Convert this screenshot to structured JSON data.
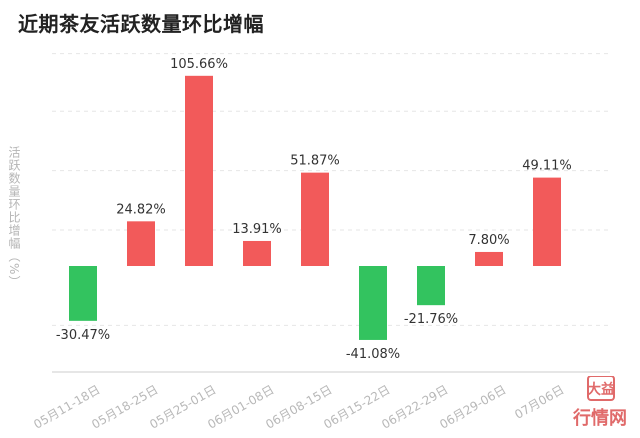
{
  "title": "近期茶友活跃数量环比增幅",
  "chart_data": {
    "type": "bar",
    "title": "近期茶友活跃数量环比增幅",
    "ylabel": "活跃数量环比增幅（%）",
    "xlabel": "",
    "categories": [
      "05月11-18日",
      "05月18-25日",
      "05月25-01日",
      "06月01-08日",
      "06月08-15日",
      "06月15-22日",
      "06月22-29日",
      "06月29-06日",
      "07月06日"
    ],
    "values": [
      -30.47,
      24.82,
      105.66,
      13.91,
      51.87,
      -41.08,
      -21.76,
      7.8,
      49.11
    ],
    "value_labels": [
      "-30.47%",
      "24.82%",
      "105.66%",
      "13.91%",
      "51.87%",
      "-41.08%",
      "-21.76%",
      "7.80%",
      "49.11%"
    ],
    "ylim": [
      -60,
      120
    ],
    "grid": true,
    "positive_color": "#f25a5a",
    "negative_color": "#33c35f"
  },
  "watermark": {
    "top": "大益",
    "bottom": "行情网"
  }
}
